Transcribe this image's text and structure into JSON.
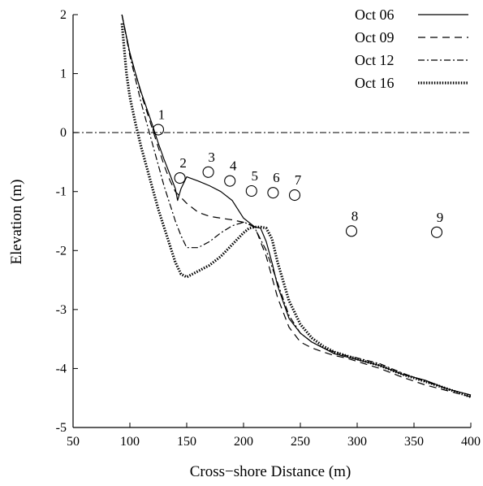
{
  "chart_data": {
    "type": "line",
    "xlabel": "Cross−shore Distance (m)",
    "ylabel": "Elevation (m)",
    "xlim": [
      50,
      400
    ],
    "ylim": [
      -5,
      2
    ],
    "xticks": [
      50,
      100,
      150,
      200,
      250,
      300,
      350,
      400
    ],
    "yticks": [
      2,
      1,
      0,
      -1,
      -2,
      -3,
      -4,
      -5
    ],
    "grid": false,
    "legend_position": "top-right",
    "reference_line": {
      "y": 0,
      "style": "dash-dot"
    },
    "series": [
      {
        "name": "Oct 06",
        "style": "solid",
        "x": [
          93,
          100,
          105,
          110,
          115,
          120,
          125,
          130,
          135,
          140,
          142,
          145,
          150,
          160,
          170,
          180,
          190,
          200,
          210,
          215,
          220,
          225,
          230,
          240,
          250,
          260,
          270,
          280,
          290,
          300,
          320,
          340,
          360,
          380,
          400
        ],
        "y": [
          2.0,
          1.35,
          1.0,
          0.68,
          0.4,
          0.12,
          -0.18,
          -0.45,
          -0.7,
          -0.95,
          -1.15,
          -0.95,
          -0.75,
          -0.82,
          -0.9,
          -1.0,
          -1.15,
          -1.45,
          -1.6,
          -1.62,
          -1.85,
          -2.2,
          -2.6,
          -3.15,
          -3.4,
          -3.55,
          -3.65,
          -3.75,
          -3.8,
          -3.85,
          -3.95,
          -4.1,
          -4.2,
          -4.35,
          -4.45
        ]
      },
      {
        "name": "Oct 09",
        "style": "dashed",
        "x": [
          93,
          100,
          105,
          110,
          115,
          120,
          125,
          130,
          135,
          140,
          145,
          150,
          160,
          170,
          180,
          190,
          200,
          210,
          220,
          230,
          240,
          250,
          260,
          270,
          280,
          290,
          300,
          320,
          340,
          360,
          380,
          400
        ],
        "y": [
          2.0,
          1.35,
          1.0,
          0.65,
          0.35,
          0.05,
          -0.25,
          -0.55,
          -0.8,
          -1.0,
          -1.1,
          -1.2,
          -1.35,
          -1.42,
          -1.45,
          -1.48,
          -1.52,
          -1.6,
          -2.1,
          -2.8,
          -3.3,
          -3.55,
          -3.65,
          -3.72,
          -3.78,
          -3.82,
          -3.88,
          -4.0,
          -4.15,
          -4.28,
          -4.38,
          -4.48
        ]
      },
      {
        "name": "Oct 12",
        "style": "dashdot",
        "x": [
          93,
          100,
          105,
          110,
          115,
          120,
          125,
          130,
          135,
          140,
          145,
          150,
          160,
          170,
          180,
          190,
          200,
          205,
          210,
          220,
          230,
          240,
          250,
          260,
          270,
          280,
          290,
          300,
          320,
          340,
          360,
          380,
          400
        ],
        "y": [
          2.0,
          1.3,
          0.9,
          0.5,
          0.15,
          -0.2,
          -0.55,
          -0.9,
          -1.2,
          -1.5,
          -1.75,
          -1.95,
          -1.95,
          -1.85,
          -1.7,
          -1.58,
          -1.52,
          -1.55,
          -1.62,
          -2.0,
          -2.55,
          -3.1,
          -3.4,
          -3.55,
          -3.65,
          -3.72,
          -3.78,
          -3.82,
          -3.92,
          -4.08,
          -4.22,
          -4.35,
          -4.45
        ]
      },
      {
        "name": "Oct 16",
        "style": "dotted",
        "x": [
          93,
          97,
          100,
          105,
          110,
          115,
          120,
          125,
          130,
          135,
          140,
          145,
          150,
          160,
          170,
          180,
          190,
          200,
          205,
          210,
          215,
          220,
          225,
          230,
          240,
          250,
          260,
          270,
          280,
          290,
          300,
          320,
          340,
          360,
          380,
          400
        ],
        "y": [
          1.85,
          1.0,
          0.6,
          0.15,
          -0.25,
          -0.6,
          -0.95,
          -1.3,
          -1.6,
          -1.9,
          -2.2,
          -2.4,
          -2.45,
          -2.35,
          -2.25,
          -2.1,
          -1.9,
          -1.7,
          -1.62,
          -1.6,
          -1.6,
          -1.62,
          -1.8,
          -2.2,
          -2.85,
          -3.25,
          -3.48,
          -3.62,
          -3.72,
          -3.78,
          -3.84,
          -3.95,
          -4.1,
          -4.22,
          -4.35,
          -4.48
        ]
      }
    ],
    "gauges": [
      {
        "label": "1",
        "x": 125,
        "y": 0.05
      },
      {
        "label": "2",
        "x": 144,
        "y": -0.77
      },
      {
        "label": "3",
        "x": 169,
        "y": -0.67
      },
      {
        "label": "4",
        "x": 188,
        "y": -0.82
      },
      {
        "label": "5",
        "x": 207,
        "y": -0.99
      },
      {
        "label": "6",
        "x": 226,
        "y": -1.02
      },
      {
        "label": "7",
        "x": 245,
        "y": -1.06
      },
      {
        "label": "8",
        "x": 295,
        "y": -1.67
      },
      {
        "label": "9",
        "x": 370,
        "y": -1.69
      }
    ]
  }
}
